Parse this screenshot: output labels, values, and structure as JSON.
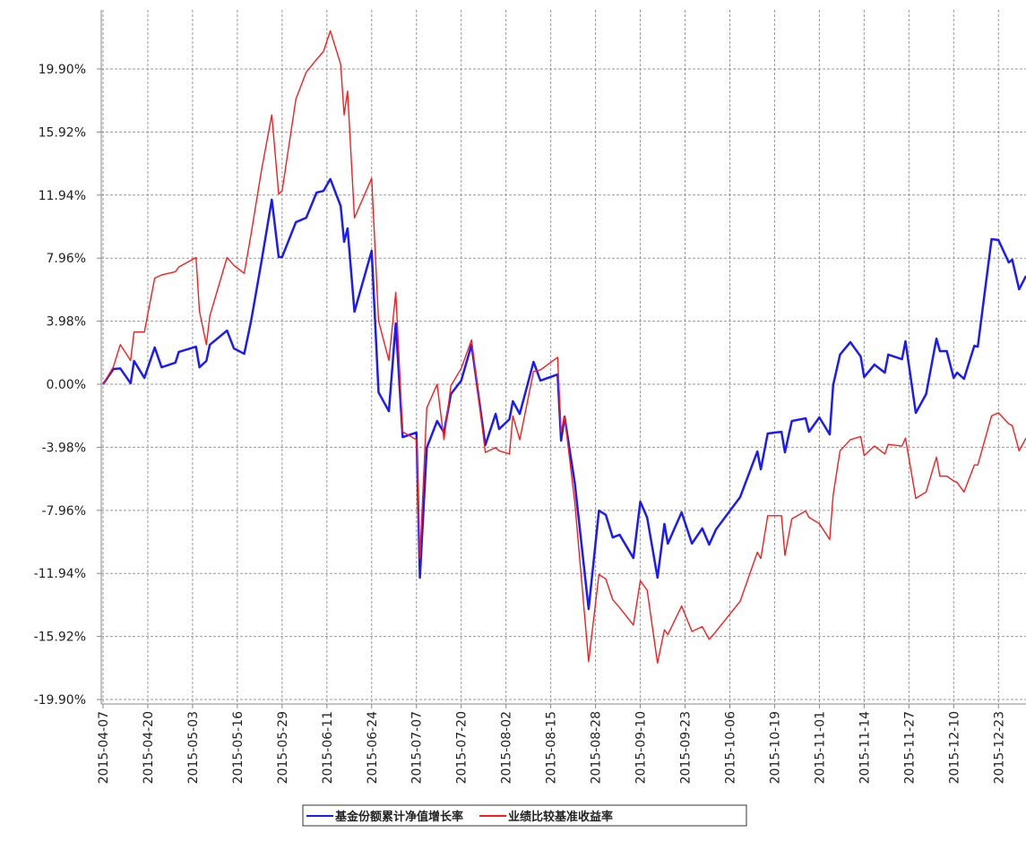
{
  "chart_data": {
    "type": "line",
    "x": [
      "2015-04-07",
      "2015-04-10",
      "2015-04-12",
      "2015-04-15",
      "2015-04-16",
      "2015-04-19",
      "2015-04-22",
      "2015-04-24",
      "2015-04-28",
      "2015-04-29",
      "2015-05-04",
      "2015-05-05",
      "2015-05-07",
      "2015-05-08",
      "2015-05-13",
      "2015-05-15",
      "2015-05-18",
      "2015-05-20",
      "2015-05-23",
      "2015-05-26",
      "2015-05-28",
      "2015-05-29",
      "2015-06-02",
      "2015-06-05",
      "2015-06-08",
      "2015-06-10",
      "2015-06-12",
      "2015-06-15",
      "2015-06-16",
      "2015-06-17",
      "2015-06-19",
      "2015-06-24",
      "2015-06-26",
      "2015-06-29",
      "2015-07-01",
      "2015-07-03",
      "2015-07-07",
      "2015-07-08",
      "2015-07-10",
      "2015-07-13",
      "2015-07-15",
      "2015-07-17",
      "2015-07-20",
      "2015-07-23",
      "2015-07-27",
      "2015-07-30",
      "2015-07-31",
      "2015-08-03",
      "2015-08-04",
      "2015-08-06",
      "2015-08-10",
      "2015-08-12",
      "2015-08-17",
      "2015-08-18",
      "2015-08-19",
      "2015-08-22",
      "2015-08-26",
      "2015-08-29",
      "2015-08-31",
      "2015-09-02",
      "2015-09-04",
      "2015-09-08",
      "2015-09-10",
      "2015-09-12",
      "2015-09-15",
      "2015-09-17",
      "2015-09-18",
      "2015-09-22",
      "2015-09-25",
      "2015-09-28",
      "2015-09-30",
      "2015-10-02",
      "2015-10-09",
      "2015-10-14",
      "2015-10-15",
      "2015-10-17",
      "2015-10-21",
      "2015-10-22",
      "2015-10-24",
      "2015-10-28",
      "2015-10-29",
      "2015-11-01",
      "2015-11-04",
      "2015-11-05",
      "2015-11-07",
      "2015-11-10",
      "2015-11-13",
      "2015-11-14",
      "2015-11-17",
      "2015-11-20",
      "2015-11-21",
      "2015-11-25",
      "2015-11-26",
      "2015-11-29",
      "2015-12-02",
      "2015-12-05",
      "2015-12-06",
      "2015-12-08",
      "2015-12-10",
      "2015-12-11",
      "2015-12-13",
      "2015-12-16",
      "2015-12-17",
      "2015-12-21",
      "2015-12-23",
      "2015-12-26",
      "2015-12-27",
      "2015-12-29",
      "2015-12-31"
    ],
    "series": [
      {
        "name": "基金份额累计净值增长率",
        "color": "#1a1aff",
        "width": 2.5,
        "values": [
          0,
          0.96,
          1.0,
          0.06,
          1.47,
          0.4,
          2.32,
          1.07,
          1.36,
          2.04,
          2.37,
          1.07,
          1.47,
          2.49,
          3.39,
          2.26,
          1.92,
          4.01,
          7.74,
          11.65,
          8.03,
          8.03,
          10.23,
          10.51,
          12.1,
          12.2,
          12.95,
          11.25,
          8.99,
          9.84,
          4.58,
          8.42,
          -0.51,
          -1.7,
          3.84,
          -3.34,
          -3.05,
          -12.21,
          -4.01,
          -2.32,
          -3.05,
          -0.62,
          0.23,
          2.49,
          -3.84,
          -1.87,
          -2.83,
          -2.21,
          -1.07,
          -1.87,
          1.41,
          0.23,
          0.62,
          -3.56,
          -2.04,
          -6.27,
          -14.19,
          -7.97,
          -8.25,
          -9.67,
          -9.5,
          -10.97,
          -7.41,
          -8.42,
          -12.21,
          -8.82,
          -10.06,
          -8.08,
          -10.06,
          -9.1,
          -10.12,
          -9.16,
          -7.12,
          -4.24,
          -5.37,
          -3.11,
          -3.0,
          -4.3,
          -2.32,
          -2.15,
          -3.0,
          -2.09,
          -3.17,
          -0.06,
          1.87,
          2.66,
          1.75,
          0.45,
          1.24,
          0.73,
          1.87,
          1.58,
          2.71,
          -1.81,
          -0.62,
          2.88,
          2.09,
          2.09,
          0.4,
          0.73,
          0.34,
          2.43,
          2.37,
          9.16,
          9.1,
          7.69,
          7.86,
          5.99,
          6.84
        ]
      },
      {
        "name": "业绩比较基准收益率",
        "color": "#ff1a1a",
        "width": 1.4,
        "values": [
          0,
          1.1,
          2.5,
          1.5,
          3.3,
          3.3,
          6.7,
          6.9,
          7.1,
          7.4,
          8.0,
          4.6,
          2.5,
          4.3,
          8.0,
          7.5,
          7.0,
          9.5,
          13.5,
          17.0,
          12.0,
          12.2,
          18.0,
          19.7,
          20.5,
          21.0,
          22.3,
          20.2,
          17.0,
          18.5,
          10.5,
          13.0,
          4.0,
          1.5,
          5.8,
          -3.0,
          -3.5,
          -11.0,
          -1.5,
          0.0,
          -3.5,
          -0.1,
          1.0,
          2.8,
          -4.3,
          -4.0,
          -4.2,
          -4.4,
          -2.0,
          -3.5,
          0.8,
          0.9,
          1.7,
          -3.0,
          -2.0,
          -7.5,
          -17.5,
          -12.0,
          -12.3,
          -13.6,
          -14.1,
          -15.2,
          -12.4,
          -13.0,
          -17.6,
          -15.5,
          -15.8,
          -14.0,
          -15.6,
          -15.3,
          -16.1,
          -15.6,
          -13.7,
          -10.6,
          -11.0,
          -8.3,
          -8.3,
          -10.8,
          -8.5,
          -8.0,
          -8.4,
          -8.8,
          -9.8,
          -7.0,
          -4.2,
          -3.5,
          -3.3,
          -4.5,
          -3.9,
          -4.4,
          -3.8,
          -3.9,
          -3.4,
          -7.2,
          -6.8,
          -4.6,
          -5.8,
          -5.8,
          -6.1,
          -6.2,
          -6.8,
          -5.1,
          -5.1,
          -2.0,
          -1.8,
          -2.5,
          -2.6,
          -4.2,
          -3.4
        ]
      }
    ],
    "xlim": [
      "2015-04-07",
      "2015-12-31"
    ],
    "xticks": [
      "2015-04-07",
      "2015-04-20",
      "2015-05-03",
      "2015-05-16",
      "2015-05-29",
      "2015-06-11",
      "2015-06-24",
      "2015-07-07",
      "2015-07-20",
      "2015-08-02",
      "2015-08-15",
      "2015-08-28",
      "2015-09-10",
      "2015-09-23",
      "2015-10-06",
      "2015-10-19",
      "2015-11-01",
      "2015-11-14",
      "2015-11-27",
      "2015-12-10",
      "2015-12-23"
    ],
    "ylim": [
      -20.18,
      23.63
    ],
    "yticks": [
      {
        "value": -19.9,
        "label": "-19.90%"
      },
      {
        "value": -15.92,
        "label": "-15.92%"
      },
      {
        "value": -11.94,
        "label": "-11.94%"
      },
      {
        "value": -7.96,
        "label": "-7.96%"
      },
      {
        "value": -3.98,
        "label": "-3.98%"
      },
      {
        "value": 0,
        "label": "0.00%"
      },
      {
        "value": 3.98,
        "label": "3.98%"
      },
      {
        "value": 7.96,
        "label": "7.96%"
      },
      {
        "value": 11.94,
        "label": "11.94%"
      },
      {
        "value": 15.92,
        "label": "15.92%"
      },
      {
        "value": 19.9,
        "label": "19.90%"
      }
    ],
    "grid": true
  }
}
